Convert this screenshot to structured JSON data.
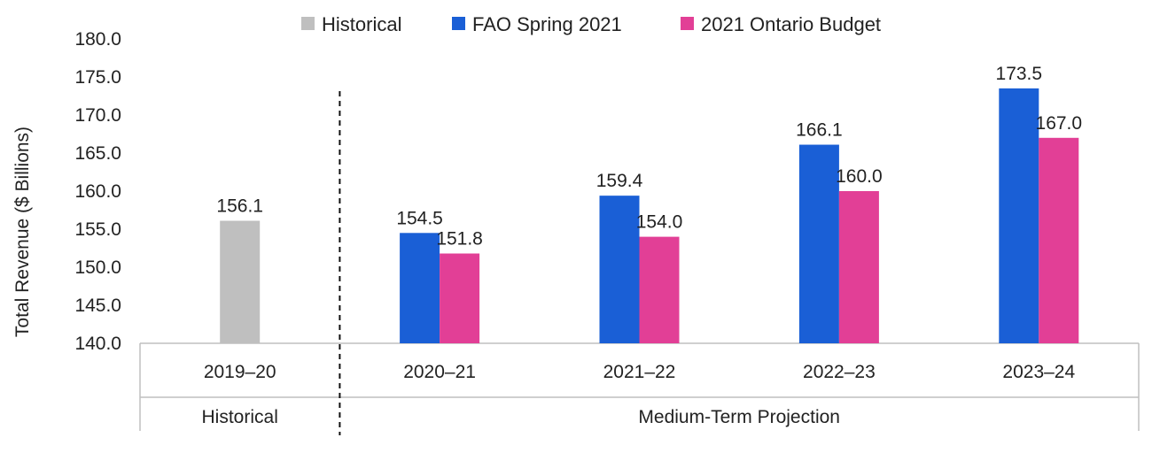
{
  "chart_data": {
    "type": "bar",
    "ylabel": "Total Revenue ($ Billions)",
    "ylim": [
      140,
      180
    ],
    "y_ticks": [
      "140.0",
      "145.0",
      "150.0",
      "155.0",
      "160.0",
      "165.0",
      "170.0",
      "175.0",
      "180.0"
    ],
    "categories": [
      "2019–20",
      "2020–21",
      "2021–22",
      "2022–23",
      "2023–24"
    ],
    "groups": [
      {
        "label": "Historical",
        "categories": [
          "2019–20"
        ]
      },
      {
        "label": "Medium-Term Projection",
        "categories": [
          "2020–21",
          "2021–22",
          "2022–23",
          "2023–24"
        ]
      }
    ],
    "series": [
      {
        "name": "Historical",
        "color": "#bfbfbf",
        "values": [
          156.1,
          null,
          null,
          null,
          null
        ]
      },
      {
        "name": "FAO Spring 2021",
        "color": "#1a5fd6",
        "values": [
          null,
          154.5,
          159.4,
          166.1,
          173.5
        ]
      },
      {
        "name": "2021 Ontario Budget",
        "color": "#e23f96",
        "values": [
          null,
          151.8,
          154.0,
          160.0,
          167.0
        ]
      }
    ],
    "legend_position": "top-center",
    "grid": false
  }
}
